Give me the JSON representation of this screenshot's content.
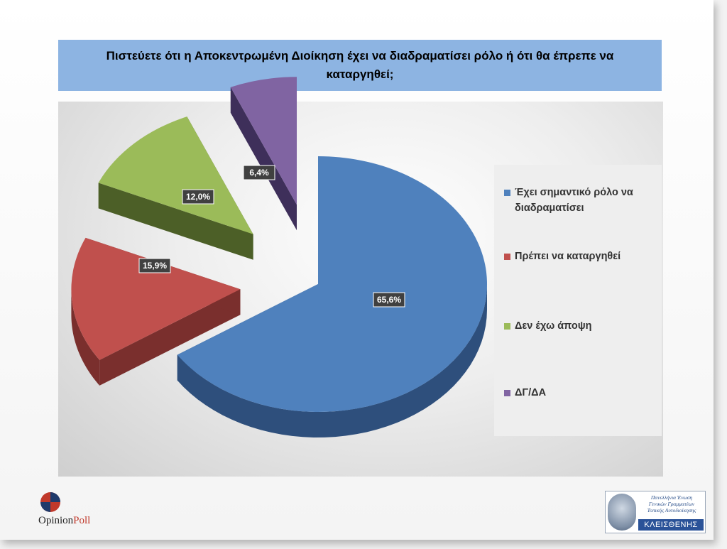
{
  "title": "Πιστεύετε  ότι η Αποκεντρωμένη Διοίκηση έχει να διαδραματίσει ρόλο ή ότι θα έπρεπε να καταργηθεί;",
  "chart_data": {
    "type": "pie",
    "categories": [
      "Έχει σημαντικό ρόλο να διαδραματίσει",
      "Πρέπει να καταργηθεί",
      "Δεν έχω άποψη",
      "ΔΓ/ΔΑ"
    ],
    "values": [
      65.6,
      15.9,
      12.0,
      6.4
    ],
    "data_labels": [
      "65,6%",
      "15,9%",
      "12,0%",
      "6,4%"
    ],
    "colors": [
      "#4f81bd",
      "#c0504d",
      "#9bbb59",
      "#8064a2"
    ],
    "side_colors": [
      "#2e4f7c",
      "#7a2f2d",
      "#4c5f27",
      "#3e2f5a"
    ],
    "legend_position": "right",
    "exploded": true,
    "three_d": true
  },
  "logos": {
    "left": {
      "text_main": "Opinion",
      "text_accent": "Poll"
    },
    "right": {
      "lines": [
        "Πανελλήνια Ένωση",
        "Γενικών Γραμματέων",
        "Τοπικής Αυτοδιοίκησης"
      ],
      "name": "ΚΛΕΙΣΘΕΝΗΣ"
    }
  }
}
